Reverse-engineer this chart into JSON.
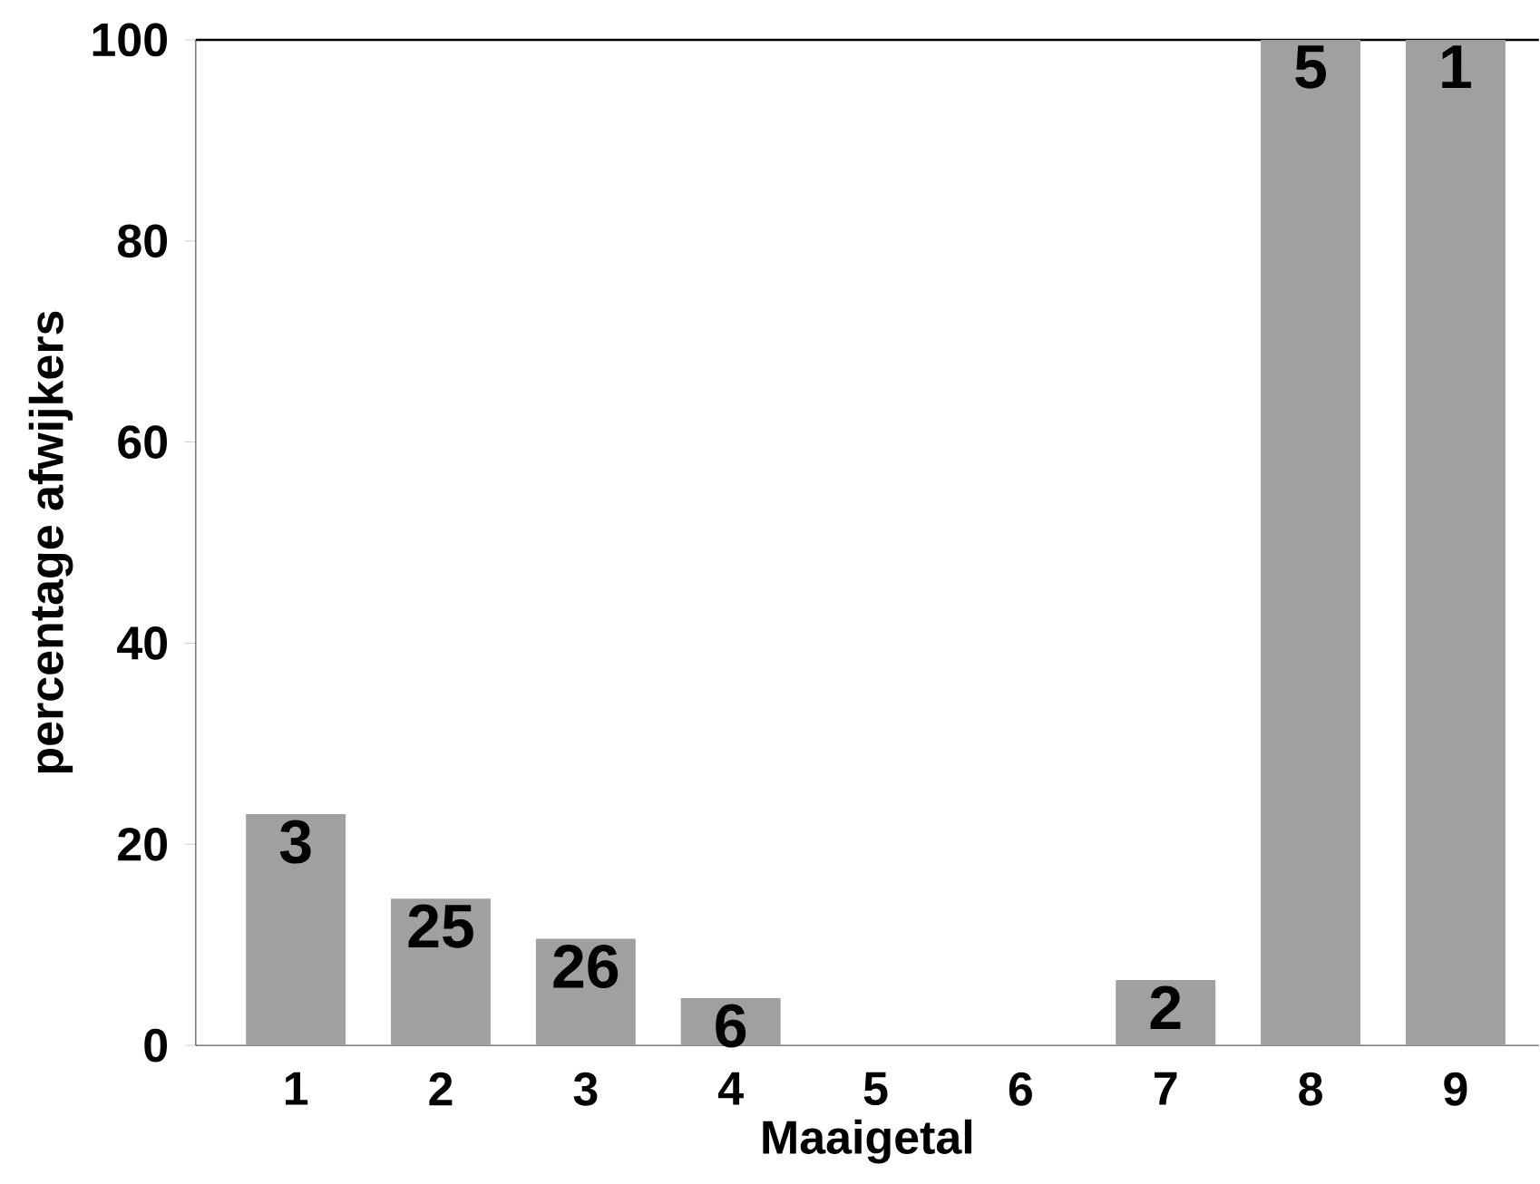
{
  "chart_data": {
    "type": "bar",
    "xlabel": "Maaigetal",
    "ylabel": "percentage afwijkers",
    "categories": [
      "1",
      "2",
      "3",
      "4",
      "5",
      "6",
      "7",
      "8",
      "9"
    ],
    "values": [
      23,
      14.6,
      10.6,
      4.7,
      0,
      0,
      6.5,
      100,
      100
    ],
    "color": "#a0a0a0",
    "ylim": [
      0,
      100
    ],
    "yticks": [
      0,
      20,
      40,
      60,
      80,
      100
    ],
    "annotations": [
      {
        "text": "3",
        "x": "1",
        "y": 23
      },
      {
        "text": "25",
        "x": "2",
        "y": 14.6
      },
      {
        "text": "26",
        "x": "3",
        "y": 10.6
      },
      {
        "text": "6",
        "x": "4",
        "y": 4.7
      },
      {
        "text": "2",
        "x": "7",
        "y": 6.5
      },
      {
        "text": "5",
        "x": "8",
        "y": 100
      },
      {
        "text": "1",
        "x": "9",
        "y": 100
      }
    ]
  }
}
